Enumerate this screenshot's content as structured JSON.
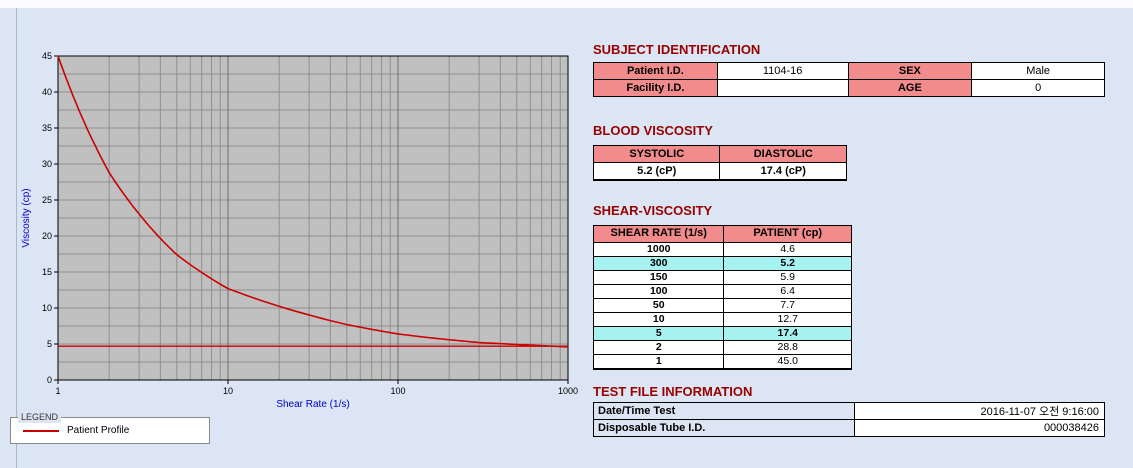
{
  "colors": {
    "header_pink": "#f28b8b",
    "highlight_cyan": "#a6f2f0",
    "title_maroon": "#990000"
  },
  "chart": {
    "legend_title": "LEGEND",
    "legend_series": "Patient Profile"
  },
  "chart_data": {
    "type": "line",
    "xlabel": "Shear Rate (1/s)",
    "ylabel": "Viscosity (cp)",
    "x_scale": "log",
    "xlim": [
      1,
      1000
    ],
    "ylim": [
      0,
      45
    ],
    "x_ticks": [
      1,
      10,
      100,
      1000
    ],
    "y_ticks": [
      0,
      5,
      10,
      15,
      20,
      25,
      30,
      35,
      40,
      45
    ],
    "x": [
      1,
      2,
      5,
      10,
      50,
      100,
      150,
      300,
      1000
    ],
    "series": [
      {
        "name": "Patient Profile",
        "color": "#cc0000",
        "values": [
          45.0,
          28.8,
          17.4,
          12.7,
          7.7,
          6.4,
          5.9,
          5.2,
          4.6
        ]
      }
    ],
    "baseline": {
      "y": 4.7,
      "color": "#cc0000"
    },
    "plot_bg": "#c0c0c0",
    "grid_color": "#8f8f8f",
    "axis_label_color": "#0000cc",
    "grid": true,
    "legend_position": "bottom-left"
  },
  "subject": {
    "title": "SUBJECT IDENTIFICATION",
    "patient_id_label": "Patient I.D.",
    "patient_id": "1104-16",
    "sex_label": "SEX",
    "sex": "Male",
    "facility_id_label": "Facility I.D.",
    "facility_id": "",
    "age_label": "AGE",
    "age": "0"
  },
  "blood_viscosity": {
    "title": "BLOOD VISCOSITY",
    "systolic_label": "SYSTOLIC",
    "diastolic_label": "DIASTOLIC",
    "systolic": "5.2 (cP)",
    "diastolic": "17.4 (cP)"
  },
  "shear_viscosity": {
    "title": "SHEAR-VISCOSITY",
    "col_rate": "SHEAR RATE (1/s)",
    "col_patient": "PATIENT (cp)",
    "rows": [
      {
        "rate": "1000",
        "value": "4.6",
        "highlight": false
      },
      {
        "rate": "300",
        "value": "5.2",
        "highlight": true
      },
      {
        "rate": "150",
        "value": "5.9",
        "highlight": false
      },
      {
        "rate": "100",
        "value": "6.4",
        "highlight": false
      },
      {
        "rate": "50",
        "value": "7.7",
        "highlight": false
      },
      {
        "rate": "10",
        "value": "12.7",
        "highlight": false
      },
      {
        "rate": "5",
        "value": "17.4",
        "highlight": true
      },
      {
        "rate": "2",
        "value": "28.8",
        "highlight": false
      },
      {
        "rate": "1",
        "value": "45.0",
        "highlight": false
      }
    ]
  },
  "test_file": {
    "title": "TEST FILE INFORMATION",
    "date_label": "Date/Time Test",
    "date_value": "2016-11-07 오전 9:16:00",
    "tube_label": "Disposable Tube I.D.",
    "tube_value": "000038426"
  }
}
